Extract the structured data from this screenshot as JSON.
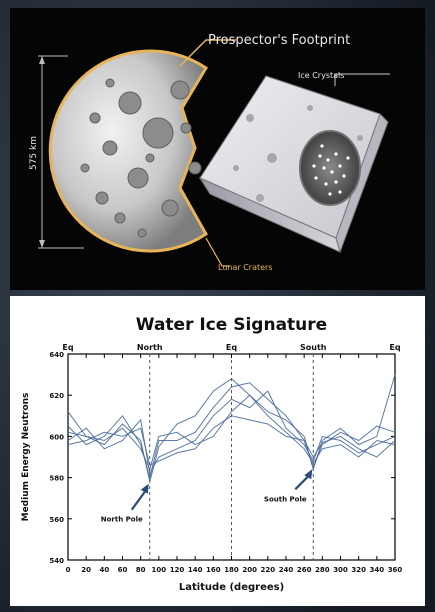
{
  "diagram": {
    "title": "Prospector's Footprint",
    "dimension_label": "575 km",
    "ice_label": "Ice Crystals",
    "crater_label": "Lunar Craters"
  },
  "chart_data": {
    "type": "line",
    "title": "Water Ice Signature",
    "xlabel": "Latitude (degrees)",
    "ylabel": "Medium Energy Neutrons",
    "xlim": [
      0,
      360
    ],
    "ylim": [
      540,
      640
    ],
    "x_ticks": [
      0,
      20,
      40,
      60,
      80,
      100,
      120,
      140,
      160,
      180,
      200,
      220,
      240,
      260,
      280,
      300,
      320,
      340,
      360
    ],
    "y_ticks": [
      540,
      560,
      580,
      600,
      620,
      640
    ],
    "top_axis_labels": [
      {
        "x": 0,
        "text": "Eq"
      },
      {
        "x": 90,
        "text": "North"
      },
      {
        "x": 180,
        "text": "Eq"
      },
      {
        "x": 270,
        "text": "South"
      },
      {
        "x": 360,
        "text": "Eq"
      }
    ],
    "annotations": [
      {
        "text": "North Pole",
        "x": 90,
        "y": 578
      },
      {
        "text": "South Pole",
        "x": 270,
        "y": 585
      }
    ],
    "series": [
      {
        "x": [
          0,
          20,
          40,
          60,
          80,
          90,
          100,
          120,
          140,
          160,
          180,
          200,
          220,
          240,
          260,
          270,
          280,
          300,
          320,
          340,
          360
        ],
        "values": [
          612,
          600,
          596,
          606,
          598,
          578,
          595,
          606,
          610,
          622,
          628,
          620,
          612,
          608,
          600,
          584,
          598,
          604,
          596,
          600,
          630
        ]
      },
      {
        "x": [
          0,
          20,
          40,
          60,
          80,
          90,
          100,
          120,
          140,
          160,
          180,
          200,
          220,
          240,
          260,
          270,
          280,
          300,
          320,
          340,
          360
        ],
        "values": [
          605,
          596,
          600,
          610,
          596,
          580,
          598,
          598,
          602,
          614,
          624,
          626,
          618,
          610,
          598,
          585,
          596,
          602,
          598,
          605,
          602
        ]
      },
      {
        "x": [
          0,
          20,
          40,
          60,
          80,
          90,
          100,
          120,
          140,
          160,
          180,
          200,
          220,
          240,
          260,
          270,
          280,
          300,
          320,
          340,
          360
        ],
        "values": [
          598,
          604,
          594,
          598,
          608,
          582,
          590,
          594,
          598,
          610,
          618,
          614,
          622,
          604,
          596,
          588,
          600,
          598,
          592,
          596,
          600
        ]
      },
      {
        "x": [
          0,
          20,
          40,
          60,
          80,
          90,
          100,
          120,
          140,
          160,
          180,
          200,
          220,
          240,
          260,
          270,
          280,
          300,
          320,
          340,
          360
        ],
        "values": [
          602,
          600,
          598,
          604,
          594,
          584,
          600,
          602,
          596,
          600,
          612,
          620,
          610,
          602,
          594,
          587,
          594,
          596,
          590,
          598,
          596
        ]
      },
      {
        "x": [
          0,
          20,
          40,
          60,
          80,
          90,
          100,
          120,
          140,
          160,
          180,
          200,
          220,
          240,
          260,
          270,
          280,
          300,
          320,
          340,
          360
        ],
        "values": [
          596,
          598,
          602,
          600,
          604,
          586,
          588,
          592,
          594,
          604,
          610,
          608,
          606,
          600,
          598,
          590,
          597,
          600,
          594,
          590,
          598
        ]
      }
    ],
    "vlines": [
      90,
      180,
      270
    ],
    "grid": false,
    "line_color": "#4a6c9a"
  }
}
